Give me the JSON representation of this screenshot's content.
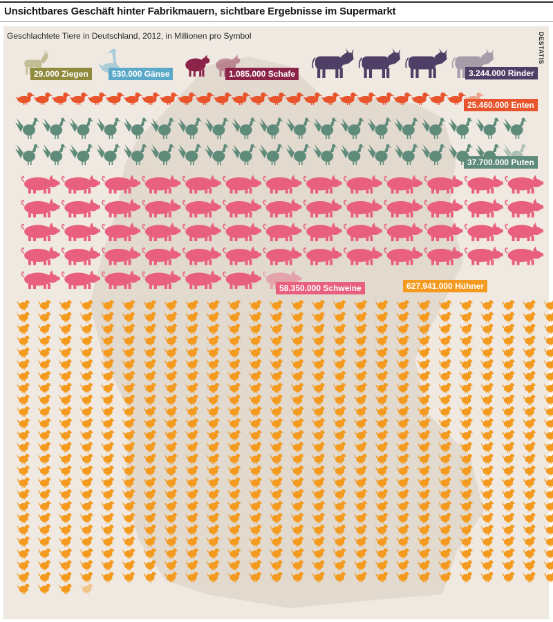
{
  "headline": "Unsichtbares Geschäft hinter Fabrikmauern, sichtbare Ergebnisse im Supermarkt",
  "subtitle": "Geschlachtete Tiere in Deutschland, 2012, in Millionen pro Symbol",
  "source": "DESTATIS",
  "chart_data": {
    "type": "pictogram",
    "unit": "Millionen pro Symbol",
    "year": 2012,
    "series": [
      {
        "name": "Ziegen",
        "label": "29.000 Ziegen",
        "value": 29000,
        "symbols": 0.029,
        "color": "#8f8a3c",
        "icon": "goat-icon"
      },
      {
        "name": "Gänse",
        "label": "530.000 Gänse",
        "value": 530000,
        "symbols": 0.53,
        "color": "#5aa9c8",
        "icon": "goose-icon"
      },
      {
        "name": "Schafe",
        "label": "1.085.000 Schafe",
        "value": 1085000,
        "symbols": 1.085,
        "color": "#8b2448",
        "icon": "sheep-icon"
      },
      {
        "name": "Rinder",
        "label": "3.244.000 Rinder",
        "value": 3244000,
        "symbols": 3.244,
        "color": "#4f3e66",
        "icon": "cow-icon"
      },
      {
        "name": "Enten",
        "label": "25.460.000 Enten",
        "value": 25460000,
        "symbols": 25.46,
        "color": "#e8542c",
        "icon": "duck-icon"
      },
      {
        "name": "Puten",
        "label": "37.700.000 Puten",
        "value": 37700000,
        "symbols": 37.7,
        "color": "#5f8b7a",
        "icon": "turkey-icon"
      },
      {
        "name": "Schweine",
        "label": "58.350.000 Schweine",
        "value": 58350000,
        "symbols": 58.35,
        "color": "#e8607e",
        "icon": "pig-icon"
      },
      {
        "name": "Hühner",
        "label": "627.941.000 Hühner",
        "value": 627941000,
        "symbols": 627.941,
        "color": "#f39a1f",
        "icon": "chicken-icon"
      }
    ]
  }
}
